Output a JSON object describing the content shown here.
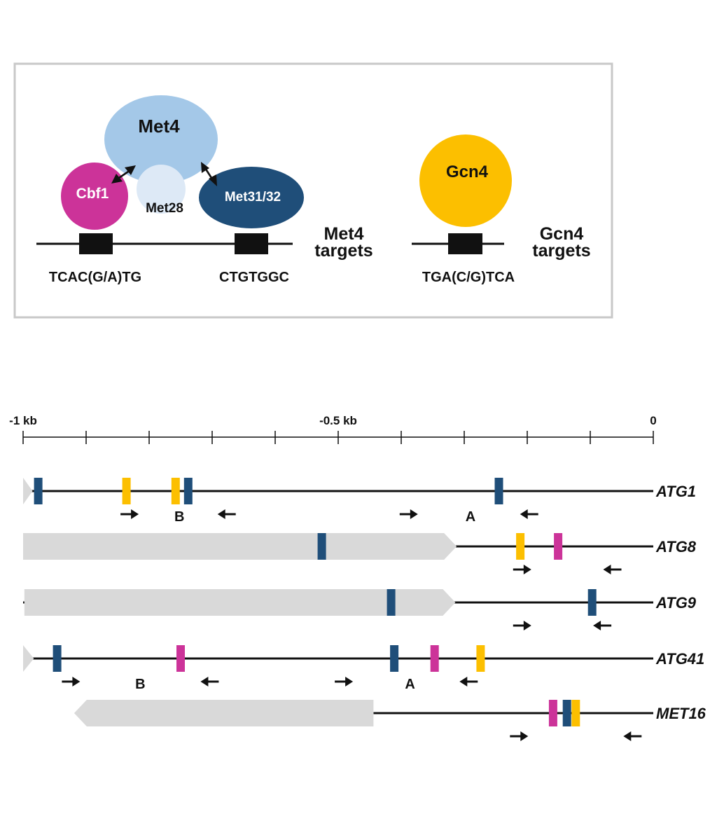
{
  "legend_box": {
    "met4_complex": {
      "met4": "Met4",
      "cbf1": "Cbf1",
      "met28": "Met28",
      "met31_32": "Met31/32",
      "target_label_line1": "Met4",
      "target_label_line2": "targets",
      "motif_cbf1": "TCAC(G/A)TG",
      "motif_met31_32": "CTGTGGC"
    },
    "gcn4_complex": {
      "gcn4": "Gcn4",
      "target_label_line1": "Gcn4",
      "target_label_line2": "targets",
      "motif_gcn4": "TGA(C/G)TCA"
    }
  },
  "scale": {
    "left_label": "-1 kb",
    "mid_label": "-0.5 kb",
    "right_label": "0",
    "min_kb": -1.0,
    "max_kb": 0.0,
    "tick_step_kb": 0.1
  },
  "colors": {
    "met4": "#a4c8e8",
    "met28": "#dde9f6",
    "cbf1": "#cc3399",
    "met31_32": "#1f4e79",
    "gcn4": "#fcbf00",
    "gene_body": "#d9d9d9",
    "line": "#111111",
    "box_border": "#c8c8c8"
  },
  "promoters": [
    {
      "gene": "ATG1",
      "neighbor": {
        "start_kb": -1.0,
        "end_kb": -0.985,
        "direction": "right"
      },
      "sites": [
        {
          "type": "met31_32",
          "pos_kb": -0.976
        },
        {
          "type": "gcn4",
          "pos_kb": -0.836
        },
        {
          "type": "gcn4",
          "pos_kb": -0.758
        },
        {
          "type": "met31_32",
          "pos_kb": -0.738
        },
        {
          "type": "met31_32",
          "pos_kb": -0.245
        }
      ],
      "primers": [
        {
          "pos_kb": -0.831,
          "dir": "right"
        },
        {
          "pos_kb": -0.677,
          "dir": "left"
        },
        {
          "pos_kb": -0.388,
          "dir": "right"
        },
        {
          "pos_kb": -0.197,
          "dir": "left"
        }
      ],
      "amplicons": [
        {
          "label": "B",
          "pos_kb": -0.752
        },
        {
          "label": "A",
          "pos_kb": -0.29
        }
      ]
    },
    {
      "gene": "ATG8",
      "neighbor": {
        "start_kb": -1.0,
        "end_kb": -0.312,
        "direction": "right"
      },
      "sites": [
        {
          "type": "met31_32",
          "pos_kb": -0.526
        },
        {
          "type": "gcn4",
          "pos_kb": -0.211
        },
        {
          "type": "cbf1",
          "pos_kb": -0.151
        }
      ],
      "primers": [
        {
          "pos_kb": -0.208,
          "dir": "right"
        },
        {
          "pos_kb": -0.065,
          "dir": "left"
        }
      ],
      "amplicons": []
    },
    {
      "gene": "ATG9",
      "neighbor": {
        "start_kb": -0.998,
        "end_kb": -0.314,
        "direction": "right"
      },
      "sites": [
        {
          "type": "met31_32",
          "pos_kb": -0.416
        },
        {
          "type": "met31_32",
          "pos_kb": -0.097
        }
      ],
      "primers": [
        {
          "pos_kb": -0.208,
          "dir": "right"
        },
        {
          "pos_kb": -0.081,
          "dir": "left"
        }
      ],
      "amplicons": []
    },
    {
      "gene": "ATG41",
      "neighbor": {
        "start_kb": -1.0,
        "end_kb": -0.983,
        "direction": "right"
      },
      "sites": [
        {
          "type": "met31_32",
          "pos_kb": -0.946
        },
        {
          "type": "cbf1",
          "pos_kb": -0.75
        },
        {
          "type": "met31_32",
          "pos_kb": -0.411
        },
        {
          "type": "cbf1",
          "pos_kb": -0.347
        },
        {
          "type": "gcn4",
          "pos_kb": -0.274
        }
      ],
      "primers": [
        {
          "pos_kb": -0.924,
          "dir": "right"
        },
        {
          "pos_kb": -0.704,
          "dir": "left"
        },
        {
          "pos_kb": -0.491,
          "dir": "right"
        },
        {
          "pos_kb": -0.293,
          "dir": "left"
        }
      ],
      "amplicons": [
        {
          "label": "B",
          "pos_kb": -0.814
        },
        {
          "label": "A",
          "pos_kb": -0.386
        }
      ]
    },
    {
      "gene": "MET16",
      "line_start_kb": -0.444,
      "neighbor": {
        "start_kb": -0.919,
        "end_kb": -0.444,
        "direction": "left"
      },
      "sites": [
        {
          "type": "cbf1",
          "pos_kb": -0.159
        },
        {
          "type": "met31_32",
          "pos_kb": -0.137
        },
        {
          "type": "gcn4",
          "pos_kb": -0.123
        }
      ],
      "primers": [
        {
          "pos_kb": -0.213,
          "dir": "right"
        },
        {
          "pos_kb": -0.033,
          "dir": "left"
        }
      ],
      "amplicons": []
    }
  ]
}
